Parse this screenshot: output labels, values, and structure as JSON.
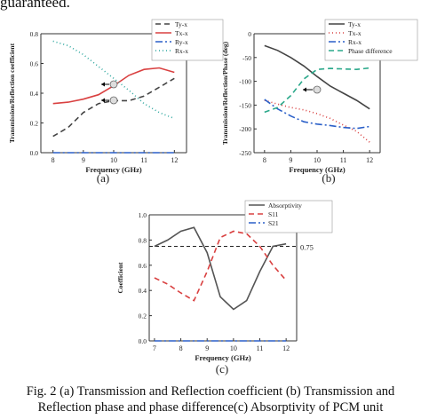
{
  "top_text": "guaranteed.",
  "caption_line1": "Fig.  2 (a) Transmission and Reflection coefficient (b) Transmission and",
  "caption_line2": "Reflection phase and phase difference(c) Absorptivity of PCM unit",
  "chart_data": [
    {
      "type": "line",
      "panel_label": "(a)",
      "xlabel": "Frequency (GHz)",
      "ylabel": "Transmission/Reflection coefficient",
      "xlim": [
        7.6,
        12.4
      ],
      "ylim": [
        0,
        0.8
      ],
      "xticks": [
        8,
        9,
        10,
        11,
        12
      ],
      "yticks": [
        0.0,
        0.2,
        0.4,
        0.6,
        0.8
      ],
      "series": [
        {
          "name": "Ty-x",
          "color": "#444444",
          "dash": "6,4",
          "x": [
            8,
            8.5,
            9,
            9.5,
            10,
            10.5,
            11,
            11.5,
            12
          ],
          "y": [
            0.11,
            0.17,
            0.27,
            0.33,
            0.35,
            0.35,
            0.38,
            0.44,
            0.5
          ]
        },
        {
          "name": "Tx-x",
          "color": "#d94040",
          "dash": "",
          "x": [
            8,
            8.5,
            9,
            9.5,
            10,
            10.5,
            11,
            11.5,
            12
          ],
          "y": [
            0.33,
            0.34,
            0.36,
            0.39,
            0.45,
            0.52,
            0.56,
            0.57,
            0.54
          ]
        },
        {
          "name": "Ry-x",
          "color": "#2a5fc8",
          "dash": "8,3,2,3",
          "x": [
            8,
            9,
            10,
            11,
            12
          ],
          "y": [
            0.0,
            0.0,
            0.0,
            0.0,
            0.0
          ]
        },
        {
          "name": "Rx-x",
          "color": "#2fa8a0",
          "dash": "1,3",
          "x": [
            8,
            8.5,
            9,
            9.5,
            10,
            10.5,
            11,
            11.5,
            12
          ],
          "y": [
            0.75,
            0.72,
            0.66,
            0.58,
            0.5,
            0.42,
            0.33,
            0.27,
            0.23
          ]
        }
      ]
    },
    {
      "type": "line",
      "panel_label": "(b)",
      "xlabel": "Frequency (GHz)",
      "ylabel": "Transmission/Reflection/Phase (deg)",
      "xlim": [
        7.6,
        12.4
      ],
      "ylim": [
        -250,
        0
      ],
      "xticks": [
        8,
        9,
        10,
        11,
        12
      ],
      "yticks": [
        0,
        -50,
        -100,
        -150,
        -200,
        -250
      ],
      "series": [
        {
          "name": "Ty-x",
          "color": "#444444",
          "dash": "",
          "x": [
            8,
            8.5,
            9,
            9.5,
            10,
            10.5,
            11,
            11.5,
            12
          ],
          "y": [
            -25,
            -35,
            -50,
            -68,
            -90,
            -110,
            -125,
            -140,
            -158
          ]
        },
        {
          "name": "Tx-x",
          "color": "#d94040",
          "dash": "1,3",
          "x": [
            8,
            8.5,
            9,
            9.5,
            10,
            10.5,
            11,
            11.5,
            12
          ],
          "y": [
            -140,
            -148,
            -155,
            -160,
            -168,
            -178,
            -192,
            -205,
            -228
          ]
        },
        {
          "name": "Rx-x",
          "color": "#2a5fc8",
          "dash": "8,3,2,3",
          "x": [
            8,
            8.5,
            9,
            9.5,
            10,
            10.5,
            11,
            11.5,
            12
          ],
          "y": [
            -138,
            -158,
            -173,
            -185,
            -190,
            -193,
            -197,
            -199,
            -195
          ]
        },
        {
          "name": "Phase difference",
          "color": "#2aa88a",
          "dash": "6,4",
          "x": [
            8,
            8.5,
            9,
            9.5,
            10,
            10.5,
            11,
            11.5,
            12
          ],
          "y": [
            -165,
            -155,
            -130,
            -95,
            -75,
            -73,
            -74,
            -75,
            -72
          ]
        }
      ]
    },
    {
      "type": "line",
      "panel_label": "(c)",
      "xlabel": "Frequency (GHz)",
      "ylabel": "Coefficient",
      "xlim": [
        6.8,
        12.4
      ],
      "ylim": [
        0,
        1.0
      ],
      "xticks": [
        7,
        8,
        9,
        10,
        11,
        12
      ],
      "yticks": [
        0.0,
        0.2,
        0.4,
        0.6,
        0.8,
        1.0
      ],
      "annotation": "0.75",
      "reference_line": 0.75,
      "series": [
        {
          "name": "Absorptivity",
          "color": "#555555",
          "dash": "",
          "x": [
            7,
            7.5,
            8,
            8.5,
            9,
            9.5,
            10,
            10.5,
            11,
            11.5,
            12
          ],
          "y": [
            0.75,
            0.8,
            0.87,
            0.9,
            0.7,
            0.35,
            0.25,
            0.32,
            0.55,
            0.75,
            0.77
          ]
        },
        {
          "name": "S11",
          "color": "#d94040",
          "dash": "6,4",
          "x": [
            7,
            7.5,
            8,
            8.5,
            9,
            9.5,
            10,
            10.5,
            11,
            11.5,
            12
          ],
          "y": [
            0.5,
            0.45,
            0.38,
            0.32,
            0.55,
            0.82,
            0.87,
            0.85,
            0.75,
            0.6,
            0.48
          ]
        },
        {
          "name": "S21",
          "color": "#2a5fc8",
          "dash": "8,3,2,3",
          "x": [
            7,
            8,
            9,
            10,
            11,
            12
          ],
          "y": [
            0.0,
            0.0,
            0.0,
            0.0,
            0.0,
            0.0
          ]
        }
      ]
    }
  ]
}
